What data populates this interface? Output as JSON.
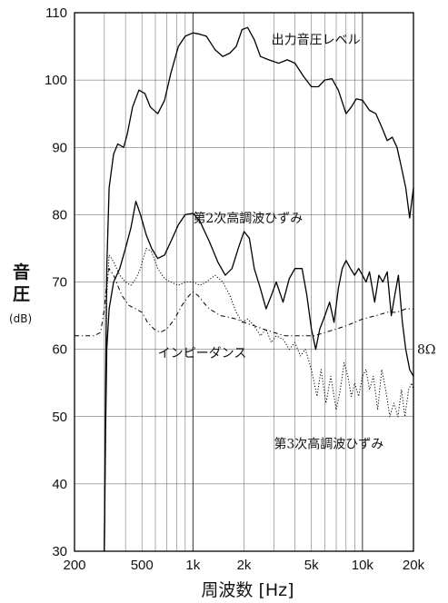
{
  "chart_data": {
    "type": "line",
    "xlabel": "周波数 [Hz]",
    "ylabel": "音圧",
    "yunit": "(dB)",
    "xscale": "log",
    "xlim": [
      200,
      20000
    ],
    "ylim": [
      30,
      110
    ],
    "grid": true,
    "x_ticks": [
      {
        "value": 200,
        "label": "200"
      },
      {
        "value": 500,
        "label": "500"
      },
      {
        "value": 1000,
        "label": "1k"
      },
      {
        "value": 2000,
        "label": "2k"
      },
      {
        "value": 5000,
        "label": "5k"
      },
      {
        "value": 10000,
        "label": "10k"
      },
      {
        "value": 20000,
        "label": "20k"
      }
    ],
    "y_ticks": [
      30,
      40,
      50,
      60,
      70,
      80,
      90,
      100,
      110
    ],
    "series": [
      {
        "name": "出力音圧レベル",
        "style": "solid",
        "points": [
          [
            300,
            30
          ],
          [
            305,
            55
          ],
          [
            310,
            72
          ],
          [
            320,
            84
          ],
          [
            340,
            89
          ],
          [
            360,
            90.5
          ],
          [
            390,
            90
          ],
          [
            410,
            92
          ],
          [
            440,
            96
          ],
          [
            480,
            98.5
          ],
          [
            520,
            98
          ],
          [
            560,
            96
          ],
          [
            620,
            95
          ],
          [
            680,
            97
          ],
          [
            740,
            101
          ],
          [
            820,
            105
          ],
          [
            900,
            106.5
          ],
          [
            1000,
            107
          ],
          [
            1100,
            106.8
          ],
          [
            1200,
            106.5
          ],
          [
            1350,
            104.5
          ],
          [
            1500,
            103.5
          ],
          [
            1650,
            104
          ],
          [
            1800,
            105
          ],
          [
            1950,
            107.5
          ],
          [
            2100,
            107.8
          ],
          [
            2300,
            106
          ],
          [
            2500,
            103.5
          ],
          [
            2800,
            103
          ],
          [
            3200,
            102.5
          ],
          [
            3600,
            103
          ],
          [
            4000,
            102.5
          ],
          [
            4500,
            100.5
          ],
          [
            5000,
            99
          ],
          [
            5500,
            99
          ],
          [
            6000,
            100
          ],
          [
            6600,
            100.2
          ],
          [
            7200,
            98.5
          ],
          [
            8000,
            95
          ],
          [
            8600,
            96
          ],
          [
            9200,
            97.2
          ],
          [
            10000,
            97
          ],
          [
            11000,
            95.5
          ],
          [
            12000,
            95
          ],
          [
            13000,
            93
          ],
          [
            14000,
            91
          ],
          [
            15000,
            91.5
          ],
          [
            16000,
            90
          ],
          [
            17000,
            87
          ],
          [
            18000,
            84
          ],
          [
            19000,
            79.5
          ],
          [
            20000,
            84
          ]
        ]
      },
      {
        "name": "第2次高調波ひずみ",
        "style": "solid",
        "points": [
          [
            300,
            30
          ],
          [
            305,
            48
          ],
          [
            310,
            60
          ],
          [
            320,
            66
          ],
          [
            340,
            70
          ],
          [
            370,
            72
          ],
          [
            400,
            75
          ],
          [
            430,
            78
          ],
          [
            460,
            82
          ],
          [
            490,
            80
          ],
          [
            530,
            77
          ],
          [
            570,
            75
          ],
          [
            620,
            73.5
          ],
          [
            680,
            74
          ],
          [
            740,
            76
          ],
          [
            820,
            78.5
          ],
          [
            900,
            80
          ],
          [
            1000,
            80.2
          ],
          [
            1100,
            79
          ],
          [
            1250,
            76
          ],
          [
            1400,
            73
          ],
          [
            1550,
            71
          ],
          [
            1700,
            72
          ],
          [
            1850,
            75
          ],
          [
            2000,
            77.5
          ],
          [
            2150,
            76.5
          ],
          [
            2300,
            72
          ],
          [
            2500,
            69
          ],
          [
            2700,
            66
          ],
          [
            2900,
            68
          ],
          [
            3100,
            70
          ],
          [
            3400,
            67
          ],
          [
            3700,
            70.5
          ],
          [
            4000,
            72
          ],
          [
            4400,
            72
          ],
          [
            4700,
            68
          ],
          [
            5000,
            63
          ],
          [
            5300,
            60
          ],
          [
            5600,
            63
          ],
          [
            6000,
            65
          ],
          [
            6400,
            67
          ],
          [
            6800,
            64
          ],
          [
            7200,
            69
          ],
          [
            7600,
            72
          ],
          [
            8000,
            73.2
          ],
          [
            8500,
            72
          ],
          [
            9000,
            71
          ],
          [
            9500,
            72
          ],
          [
            10000,
            71
          ],
          [
            10500,
            70
          ],
          [
            11000,
            71.5
          ],
          [
            11800,
            67
          ],
          [
            12500,
            71
          ],
          [
            13200,
            70
          ],
          [
            14000,
            71.5
          ],
          [
            14800,
            65
          ],
          [
            15500,
            68
          ],
          [
            16300,
            71
          ],
          [
            17200,
            64
          ],
          [
            18000,
            60
          ],
          [
            19000,
            57
          ],
          [
            20000,
            56
          ]
        ]
      },
      {
        "name": "第3次高調波ひずみ",
        "style": "dotted",
        "points": [
          [
            300,
            30
          ],
          [
            305,
            55
          ],
          [
            310,
            68
          ],
          [
            320,
            74
          ],
          [
            340,
            73
          ],
          [
            370,
            71
          ],
          [
            400,
            70
          ],
          [
            430,
            69.5
          ],
          [
            460,
            70.5
          ],
          [
            490,
            72
          ],
          [
            530,
            75
          ],
          [
            570,
            74.5
          ],
          [
            620,
            72
          ],
          [
            680,
            70.5
          ],
          [
            740,
            70
          ],
          [
            820,
            69.5
          ],
          [
            900,
            70
          ],
          [
            1000,
            70
          ],
          [
            1100,
            69.5
          ],
          [
            1200,
            70
          ],
          [
            1350,
            71
          ],
          [
            1500,
            70
          ],
          [
            1650,
            68
          ],
          [
            1800,
            65.5
          ],
          [
            1950,
            64
          ],
          [
            2100,
            64.5
          ],
          [
            2300,
            63.5
          ],
          [
            2500,
            62
          ],
          [
            2700,
            63
          ],
          [
            2900,
            61
          ],
          [
            3100,
            62
          ],
          [
            3400,
            61.5
          ],
          [
            3700,
            60
          ],
          [
            4000,
            61
          ],
          [
            4300,
            59
          ],
          [
            4600,
            60
          ],
          [
            5000,
            57
          ],
          [
            5400,
            53
          ],
          [
            5700,
            57
          ],
          [
            6100,
            52
          ],
          [
            6500,
            56
          ],
          [
            7000,
            51
          ],
          [
            7400,
            54
          ],
          [
            7800,
            58
          ],
          [
            8200,
            56
          ],
          [
            8600,
            53
          ],
          [
            9000,
            55
          ],
          [
            9500,
            53
          ],
          [
            10000,
            56
          ],
          [
            10500,
            57
          ],
          [
            11000,
            54
          ],
          [
            11600,
            56
          ],
          [
            12300,
            51
          ],
          [
            13000,
            57
          ],
          [
            13700,
            54
          ],
          [
            14500,
            50
          ],
          [
            15300,
            52
          ],
          [
            16200,
            50
          ],
          [
            17000,
            54
          ],
          [
            17800,
            50
          ],
          [
            18700,
            54
          ],
          [
            19500,
            55
          ],
          [
            20000,
            54
          ]
        ]
      },
      {
        "name": "インピーダンス",
        "style": "dashdot",
        "points": [
          [
            200,
            62
          ],
          [
            260,
            62
          ],
          [
            285,
            62.5
          ],
          [
            300,
            66
          ],
          [
            310,
            70
          ],
          [
            320,
            72
          ],
          [
            340,
            71
          ],
          [
            380,
            68
          ],
          [
            420,
            66.5
          ],
          [
            460,
            66
          ],
          [
            500,
            65.5
          ],
          [
            540,
            64
          ],
          [
            590,
            63
          ],
          [
            640,
            62.5
          ],
          [
            700,
            63
          ],
          [
            780,
            64.5
          ],
          [
            860,
            66.5
          ],
          [
            950,
            68
          ],
          [
            1000,
            68.5
          ],
          [
            1070,
            68
          ],
          [
            1150,
            67
          ],
          [
            1250,
            66
          ],
          [
            1350,
            65.5
          ],
          [
            1450,
            65
          ],
          [
            1600,
            64.8
          ],
          [
            1800,
            64.5
          ],
          [
            2000,
            64
          ],
          [
            2300,
            63.5
          ],
          [
            2600,
            63
          ],
          [
            3000,
            62.5
          ],
          [
            3500,
            62
          ],
          [
            4000,
            62
          ],
          [
            4600,
            62
          ],
          [
            5200,
            62
          ],
          [
            6000,
            62.5
          ],
          [
            7000,
            63
          ],
          [
            8000,
            63.5
          ],
          [
            9000,
            64
          ],
          [
            10000,
            64.5
          ],
          [
            12000,
            65
          ],
          [
            14000,
            65.5
          ],
          [
            16000,
            65.5
          ],
          [
            18000,
            66
          ],
          [
            20000,
            66
          ]
        ]
      }
    ],
    "annotations": [
      {
        "text": "出力音圧レベル",
        "x": 2900,
        "y": 106
      },
      {
        "text": "第2次高調波ひずみ",
        "x": 1000,
        "y": 79.5
      },
      {
        "text": "インピーダンス",
        "x": 620,
        "y": 59.5
      },
      {
        "text": "第3次高調波ひずみ",
        "x": 3000,
        "y": 46
      },
      {
        "text": "8Ω",
        "x": 21000,
        "y": 60
      }
    ]
  }
}
